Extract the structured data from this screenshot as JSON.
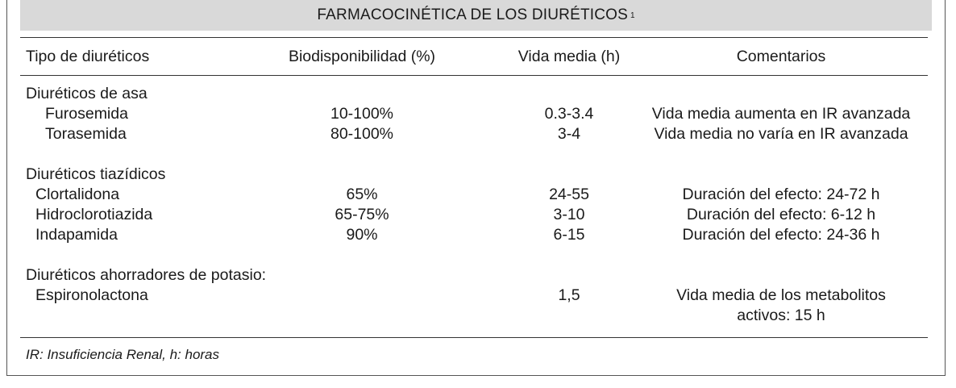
{
  "title": "FARMACOCINÉTICA DE LOS DIURÉTICOS",
  "title_ref": "1",
  "headers": {
    "type": "Tipo de diuréticos",
    "bio": "Biodisponibilidad (%)",
    "half": "Vida media (h)",
    "comments": "Comentarios"
  },
  "groups": [
    {
      "name": "Diuréticos de asa",
      "rows": [
        {
          "drug": "Furosemida",
          "bio": "10-100%",
          "half": "0.3-3.4",
          "comment": "Vida media aumenta en IR avanzada"
        },
        {
          "drug": "Torasemida",
          "bio": "80-100%",
          "half": "3-4",
          "comment": "Vida media no varía en IR avanzada"
        }
      ]
    },
    {
      "name": "Diuréticos tiazídicos",
      "rows": [
        {
          "drug": "Clortalidona",
          "bio": "65%",
          "half": "24-55",
          "comment": "Duración del efecto: 24-72 h"
        },
        {
          "drug": "Hidroclorotiazida",
          "bio": "65-75%",
          "half": "3-10",
          "comment": "Duración del efecto: 6-12 h"
        },
        {
          "drug": "Indapamida",
          "bio": "90%",
          "half": "6-15",
          "comment": "Duración del efecto: 24-36 h"
        }
      ]
    },
    {
      "name": "Diuréticos ahorradores de potasio:",
      "rows": [
        {
          "drug": "Espironolactona",
          "bio": "",
          "half": "1,5",
          "comment": "Vida media de los metabolitos",
          "comment2": "activos: 15 h"
        }
      ]
    }
  ],
  "footnote": "IR: Insuficiencia Renal, h: horas"
}
